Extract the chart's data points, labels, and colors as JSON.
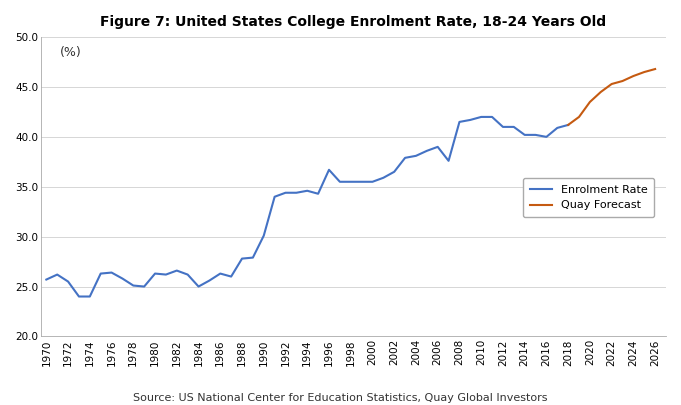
{
  "title": "Figure 7: United States College Enrolment Rate, 18-24 Years Old",
  "ylabel_text": "(%)",
  "source": "Source: US National Center for Education Statistics, Quay Global Investors",
  "ylim": [
    20.0,
    50.0
  ],
  "yticks": [
    20.0,
    25.0,
    30.0,
    35.0,
    40.0,
    45.0,
    50.0
  ],
  "enrolment_color": "#4472C4",
  "forecast_color": "#C55A11",
  "background_color": "#ffffff",
  "enrolment_data": {
    "years": [
      1970,
      1971,
      1972,
      1973,
      1974,
      1975,
      1976,
      1977,
      1978,
      1979,
      1980,
      1981,
      1982,
      1983,
      1984,
      1985,
      1986,
      1987,
      1988,
      1989,
      1990,
      1991,
      1992,
      1993,
      1994,
      1995,
      1996,
      1997,
      1998,
      1999,
      2000,
      2001,
      2002,
      2003,
      2004,
      2005,
      2006,
      2007,
      2008,
      2009,
      2010,
      2011,
      2012,
      2013,
      2014,
      2015,
      2016,
      2017,
      2018
    ],
    "values": [
      25.7,
      26.2,
      25.5,
      24.0,
      24.0,
      26.3,
      26.4,
      25.8,
      25.1,
      25.0,
      26.3,
      26.2,
      26.6,
      26.2,
      25.0,
      25.6,
      26.3,
      26.0,
      27.8,
      27.9,
      30.1,
      34.0,
      34.4,
      34.4,
      34.6,
      34.3,
      36.7,
      35.5,
      35.5,
      35.5,
      35.5,
      35.9,
      36.5,
      37.9,
      38.1,
      38.6,
      39.0,
      37.6,
      41.5,
      41.7,
      42.0,
      42.0,
      41.0,
      41.0,
      40.2,
      40.2,
      40.0,
      40.9,
      41.2
    ]
  },
  "forecast_data": {
    "years": [
      2018,
      2019,
      2020,
      2021,
      2022,
      2023,
      2024,
      2025,
      2026
    ],
    "values": [
      41.2,
      42.0,
      43.5,
      44.5,
      45.3,
      45.6,
      46.1,
      46.5,
      46.8
    ]
  },
  "xlim": [
    1969.5,
    2027
  ],
  "xtick_years": [
    1970,
    1972,
    1974,
    1976,
    1978,
    1980,
    1982,
    1984,
    1986,
    1988,
    1990,
    1992,
    1994,
    1996,
    1998,
    2000,
    2002,
    2004,
    2006,
    2008,
    2010,
    2012,
    2014,
    2016,
    2018,
    2020,
    2022,
    2024,
    2026
  ],
  "legend_enrolment": "Enrolment Rate",
  "legend_forecast": "Quay Forecast",
  "title_fontsize": 10,
  "tick_fontsize": 7.5,
  "legend_fontsize": 8,
  "source_fontsize": 8
}
